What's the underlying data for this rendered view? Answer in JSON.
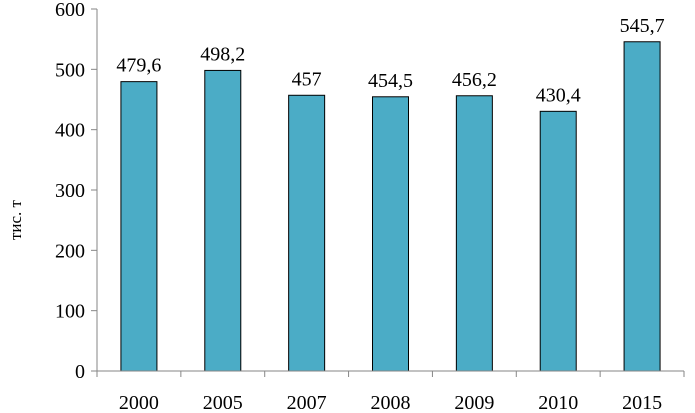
{
  "chart_data": {
    "type": "bar",
    "categories": [
      "2000",
      "2005",
      "2007",
      "2008",
      "2009",
      "2010",
      "2015"
    ],
    "values": [
      479.6,
      498.2,
      457,
      454.5,
      456.2,
      430.4,
      545.7
    ],
    "value_labels": [
      "479,6",
      "498,2",
      "457",
      "454,5",
      "456,2",
      "430,4",
      "545,7"
    ],
    "ylabel": "тис. т",
    "xlabel": "",
    "title": "",
    "ylim": [
      0,
      600
    ],
    "yticks": [
      "0",
      "100",
      "200",
      "300",
      "400",
      "500",
      "600"
    ],
    "grid": false,
    "legend": "none",
    "colors": {
      "bar_fill": "#4bacc6",
      "bar_stroke": "#000000",
      "axis": "#868686"
    }
  }
}
